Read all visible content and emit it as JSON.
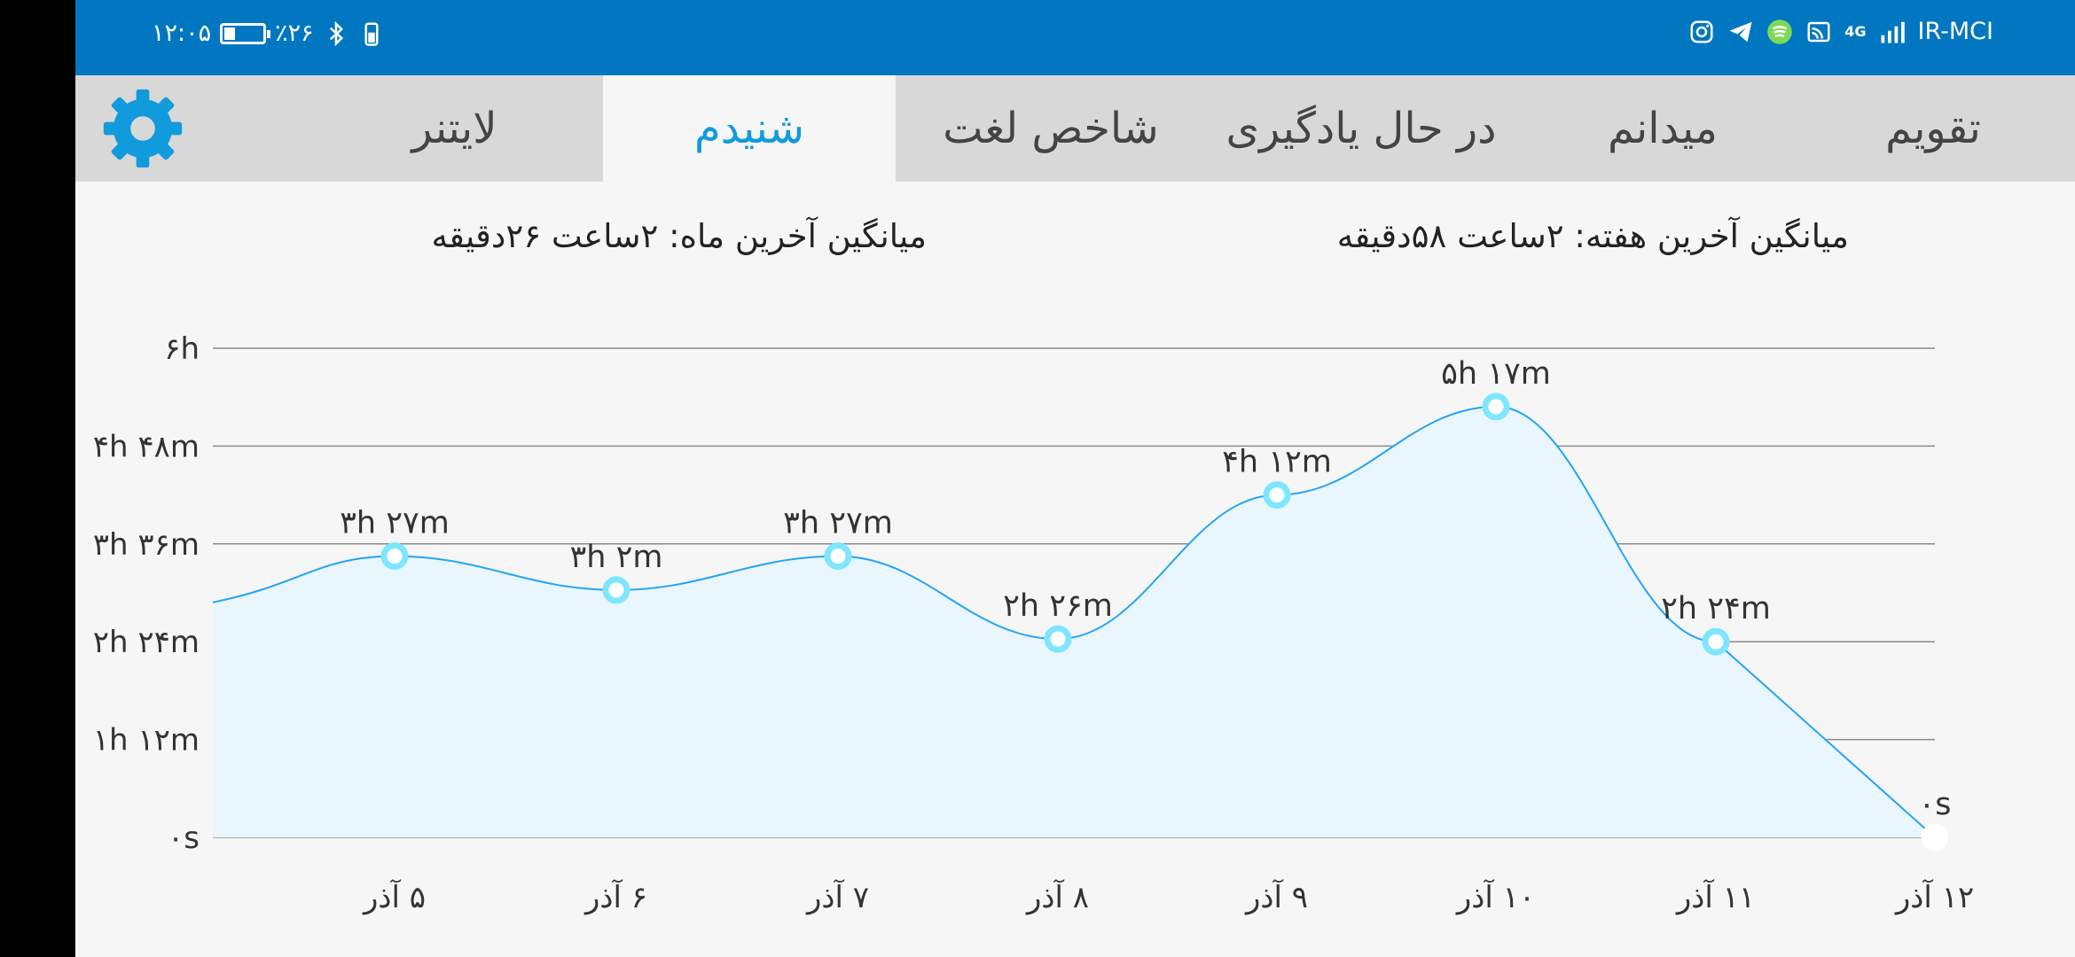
{
  "status_bar": {
    "time": "۱۲:۰۵",
    "battery_percent": "٪۲۶",
    "carrier": "IR-MCI",
    "network": "4G",
    "icons_left": [
      "battery-icon",
      "bluetooth-icon",
      "charging-icon"
    ],
    "icons_right": [
      "instagram-icon",
      "telegram-icon",
      "app-icon",
      "cast-icon",
      "signal-icon"
    ]
  },
  "tabs": [
    {
      "label": "تقویم",
      "active": false
    },
    {
      "label": "میدانم",
      "active": false
    },
    {
      "label": "در حال یادگیری",
      "active": false
    },
    {
      "label": "شاخص لغت",
      "active": false
    },
    {
      "label": "شنیدم",
      "active": true
    },
    {
      "label": "لایتنر",
      "active": false
    }
  ],
  "settings_icon": "gear-icon",
  "stats": {
    "week_label": "میانگین آخرین هفته: ",
    "week_value": "۲ساعت  ۵۸دقیقه",
    "month_label": "میانگین آخرین ماه: ",
    "month_value": "۲ساعت  ۲۶دقیقه"
  },
  "colors": {
    "status_bar": "#0277c1",
    "accent": "#129bdc",
    "area_fill": "#22a4f6",
    "marker": "#7fe6ff"
  },
  "chart_data": {
    "type": "area",
    "x_tick_labels": [
      "۵ آذر",
      "۶ آذر",
      "۷ آذر",
      "۸ آذر",
      "۹ آذر",
      "۱۰ آذر",
      "۱۱ آذر",
      "۱۲ آذر"
    ],
    "y_tick_labels": [
      "۰s",
      "۱h ۱۲m",
      "۲h ۲۴m",
      "۳h ۳۶m",
      "۴h ۴۸m",
      "۶h"
    ],
    "y_ticks_minutes": [
      0,
      72,
      144,
      216,
      288,
      360
    ],
    "ylim_minutes": [
      0,
      360
    ],
    "grid": true,
    "values_minutes": [
      207,
      182,
      207,
      146,
      252,
      317,
      144,
      0
    ],
    "point_labels": [
      "۳h ۲۷m",
      "۳h ۲m",
      "۳h ۲۷m",
      "۲h ۲۶m",
      "۴h ۱۲m",
      "۵h ۱۷m",
      "۲h ۲۴m",
      "۰s"
    ]
  }
}
